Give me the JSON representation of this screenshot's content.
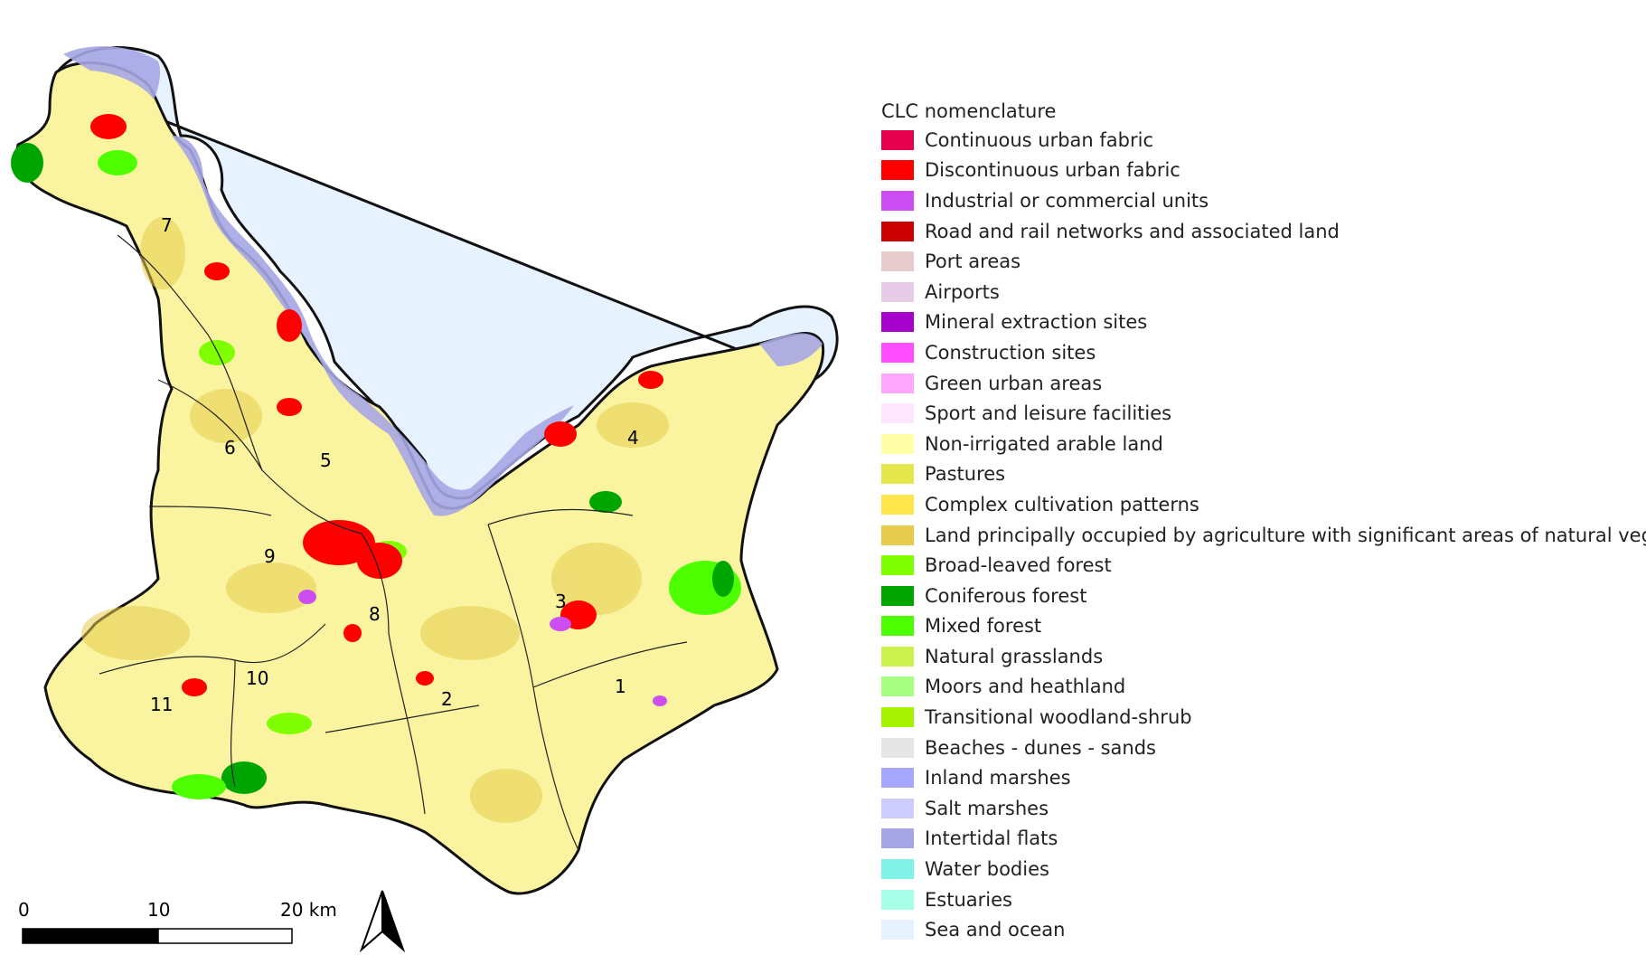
{
  "legend": {
    "title": "CLC nomenclature",
    "items": [
      {
        "label": "Continuous urban fabric",
        "color": "#e6004d"
      },
      {
        "label": "Discontinuous urban fabric",
        "color": "#ff0000"
      },
      {
        "label": "Industrial or commercial units",
        "color": "#cc4df2"
      },
      {
        "label": "Road and rail networks and associated land",
        "color": "#cc0000"
      },
      {
        "label": "Port areas",
        "color": "#e6cccc"
      },
      {
        "label": "Airports",
        "color": "#e6cce6"
      },
      {
        "label": "Mineral extraction sites",
        "color": "#a600cc"
      },
      {
        "label": "Construction sites",
        "color": "#ff4dff"
      },
      {
        "label": "Green urban areas",
        "color": "#ffa6ff"
      },
      {
        "label": "Sport and leisure facilities",
        "color": "#ffe6ff"
      },
      {
        "label": "Non-irrigated arable land",
        "color": "#ffffa8"
      },
      {
        "label": "Pastures",
        "color": "#e6e64d"
      },
      {
        "label": "Complex cultivation patterns",
        "color": "#ffe64d"
      },
      {
        "label": "Land principally occupied by agriculture with significant areas of natural vegetation",
        "color": "#e6cc4d"
      },
      {
        "label": "Broad-leaved forest",
        "color": "#80ff00"
      },
      {
        "label": "Coniferous forest",
        "color": "#00a600"
      },
      {
        "label": "Mixed forest",
        "color": "#4dff00"
      },
      {
        "label": "Natural grasslands",
        "color": "#ccf24d"
      },
      {
        "label": "Moors and heathland",
        "color": "#a6ff80"
      },
      {
        "label": "Transitional woodland-shrub",
        "color": "#a6f200"
      },
      {
        "label": "Beaches - dunes - sands",
        "color": "#e6e6e6"
      },
      {
        "label": "Inland marshes",
        "color": "#a6a6ff"
      },
      {
        "label": "Salt marshes",
        "color": "#ccccff"
      },
      {
        "label": "Intertidal flats",
        "color": "#a6a6e6"
      },
      {
        "label": "Water bodies",
        "color": "#80f2e6"
      },
      {
        "label": "Estuaries",
        "color": "#a6ffe6"
      },
      {
        "label": "Sea and ocean",
        "color": "#e6f2ff"
      }
    ]
  },
  "scale_bar": {
    "labels": [
      "0",
      "10",
      "20 km"
    ]
  },
  "zones": [
    "1",
    "2",
    "3",
    "4",
    "5",
    "6",
    "7",
    "8",
    "9",
    "10",
    "11"
  ],
  "north_arrow_icon": "north-arrow-icon"
}
